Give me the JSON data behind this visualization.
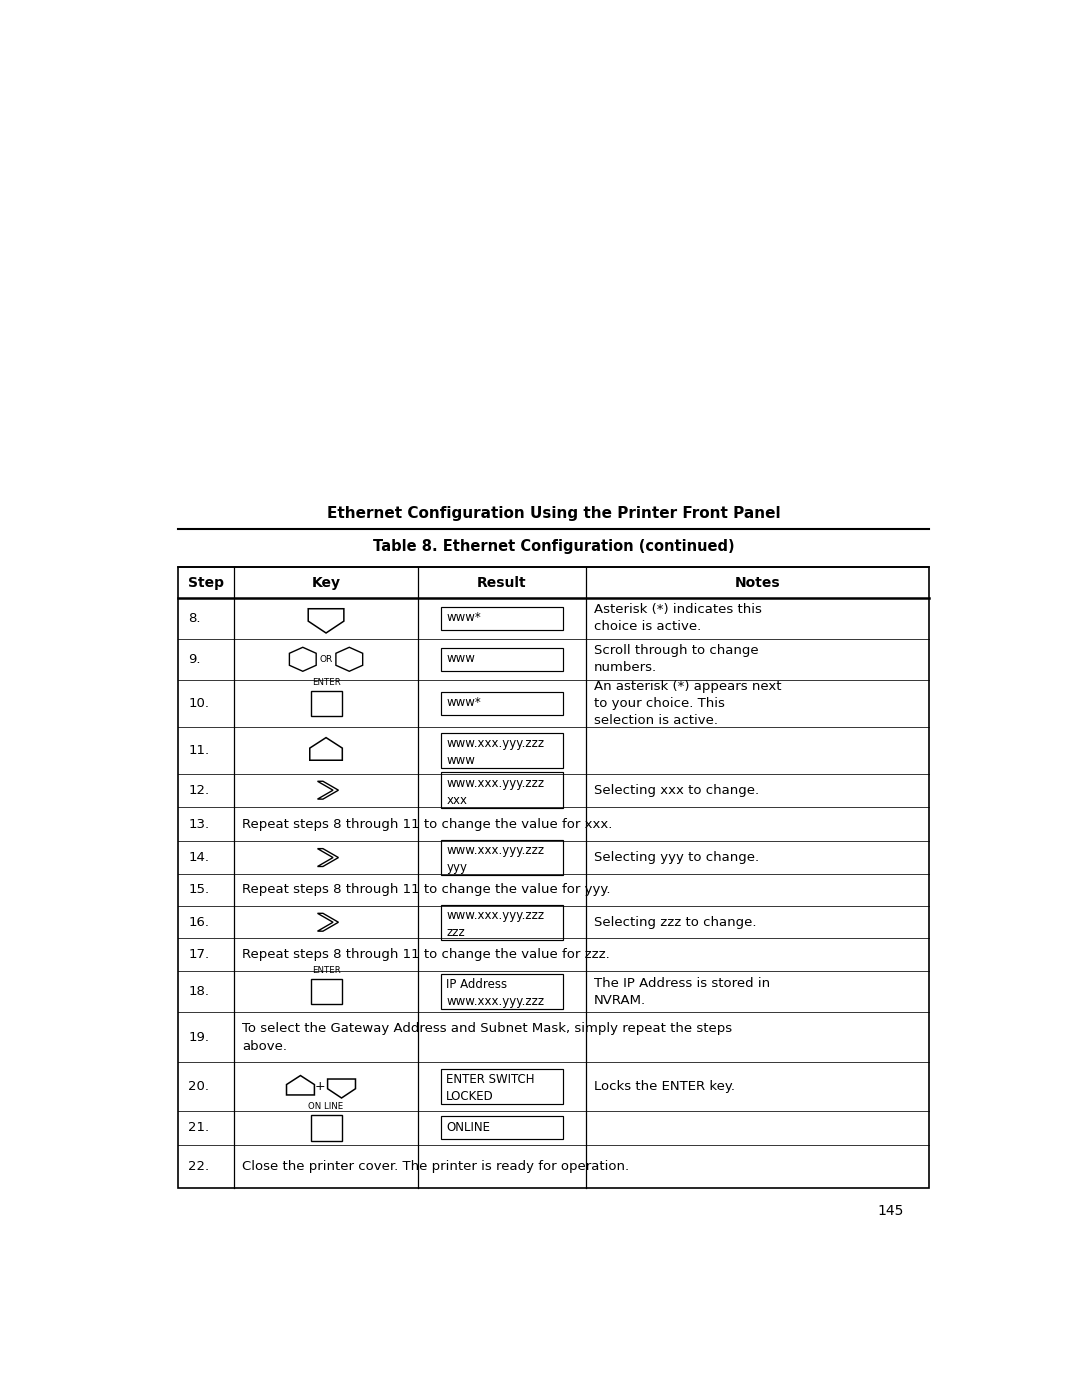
{
  "page_title": "Ethernet Configuration Using the Printer Front Panel",
  "table_title": "Table 8. Ethernet Configuration (continued)",
  "headers": [
    "Step",
    "Key",
    "Result",
    "Notes"
  ],
  "bg_color": "#ffffff",
  "text_color": "#000000",
  "page_number": "145",
  "rows": [
    {
      "step": "8.",
      "key_type": "pentagon_down",
      "result": "www*",
      "notes": "Asterisk (*) indicates this\nchoice is active."
    },
    {
      "step": "9.",
      "key_type": "hex_or",
      "result": "www",
      "notes": "Scroll through to change\nnumbers."
    },
    {
      "step": "10.",
      "key_type": "enter_rect",
      "result": "www*",
      "notes": "An asterisk (*) appears next\nto your choice. This\nselection is active."
    },
    {
      "step": "11.",
      "key_type": "pentagon_up",
      "result": "www.xxx.yyy.zzz\nwww",
      "notes": ""
    },
    {
      "step": "12.",
      "key_type": "arrow_right",
      "result": "www.xxx.yyy.zzz\nxxx",
      "notes": "Selecting xxx to change."
    },
    {
      "step": "13.",
      "key_type": "text_only",
      "result": "",
      "notes": "Repeat steps 8 through 11 to change the value for xxx."
    },
    {
      "step": "14.",
      "key_type": "arrow_right",
      "result": "www.xxx.yyy.zzz\nyyy",
      "notes": "Selecting yyy to change."
    },
    {
      "step": "15.",
      "key_type": "text_only",
      "result": "",
      "notes": "Repeat steps 8 through 11 to change the value for yyy."
    },
    {
      "step": "16.",
      "key_type": "arrow_right",
      "result": "www.xxx.yyy.zzz\nzzz",
      "notes": "Selecting zzz to change."
    },
    {
      "step": "17.",
      "key_type": "text_only",
      "result": "",
      "notes": "Repeat steps 8 through 11 to change the value for zzz."
    },
    {
      "step": "18.",
      "key_type": "enter_rect",
      "result": "IP Address\nwww.xxx.yyy.zzz",
      "notes": "The IP Address is stored in\nNVRAM."
    },
    {
      "step": "19.",
      "key_type": "text_only",
      "result": "",
      "notes": "To select the Gateway Address and Subnet Mask, simply repeat the steps\nabove."
    },
    {
      "step": "20.",
      "key_type": "pent_plus_down",
      "result": "ENTER SWITCH\nLOCKED",
      "notes": "Locks the ENTER key."
    },
    {
      "step": "21.",
      "key_type": "online_rect",
      "result": "ONLINE",
      "notes": ""
    },
    {
      "step": "22.",
      "key_type": "text_only",
      "result": "",
      "notes": "Close the printer cover. The printer is ready for operation."
    }
  ]
}
